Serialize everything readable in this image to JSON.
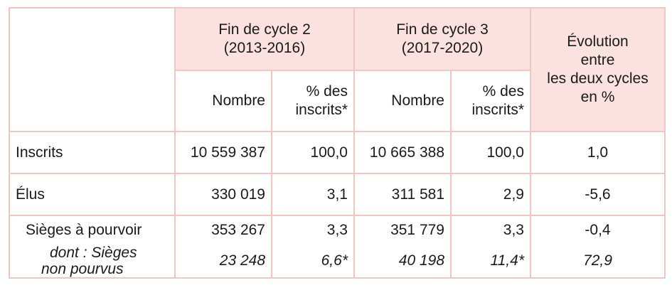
{
  "header": {
    "cycle2": "Fin de cycle 2\n(2013-2016)",
    "cycle2_line1": "Fin de cycle 2",
    "cycle2_line2": "(2013-2016)",
    "cycle3_line1": "Fin de cycle 3",
    "cycle3_line2": "(2017-2020)",
    "evolution_line1": "Évolution",
    "evolution_line2": "entre",
    "evolution_line3": "les deux cycles",
    "evolution_line4": "en %",
    "nombre": "Nombre",
    "pct_line1": "% des",
    "pct_line2": "inscrits*"
  },
  "rows": [
    {
      "label": "Inscrits",
      "c2_nombre": "10 559 387",
      "c2_pct": "100,0",
      "c3_nombre": "10 665 388",
      "c3_pct": "100,0",
      "evolution": "1,0"
    },
    {
      "label": "Élus",
      "c2_nombre": "330 019",
      "c2_pct": "3,1",
      "c3_nombre": "311 581",
      "c3_pct": "2,9",
      "evolution": "-5,6"
    },
    {
      "label": "Sièges à pourvoir",
      "c2_nombre": "353 267",
      "c2_pct": "3,3",
      "c3_nombre": "351 779",
      "c3_pct": "3,3",
      "evolution": "-0,4"
    },
    {
      "label_line1": "dont : Sièges",
      "label_line2": "non pourvus",
      "c2_nombre": "23 248",
      "c2_pct": "6,6*",
      "c3_nombre": "40 198",
      "c3_pct": "11,4*",
      "evolution": "72,9"
    }
  ],
  "colors": {
    "header_fill": "#fbe1df",
    "border": "#f0c6c4"
  }
}
